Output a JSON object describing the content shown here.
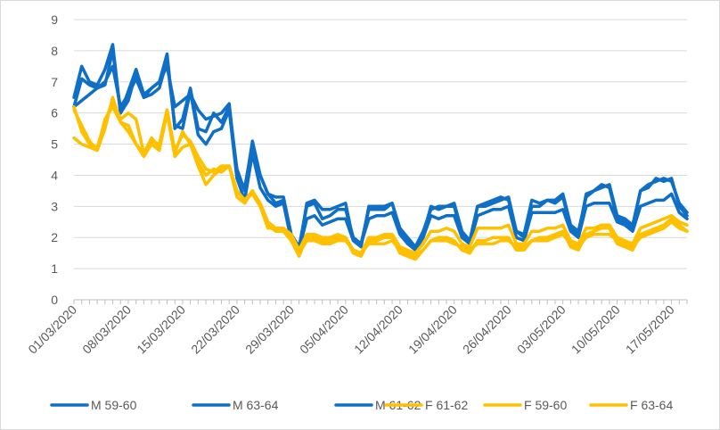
{
  "chart_data": {
    "type": "line",
    "title": "",
    "xlabel": "",
    "ylabel": "",
    "ylim": [
      0,
      9
    ],
    "yticks": [
      "0",
      "1",
      "2",
      "3",
      "4",
      "5",
      "6",
      "7",
      "8",
      "9"
    ],
    "grid": "horizontal",
    "legend_position": "bottom",
    "x_tick_labels": [
      "01/03/2020",
      "08/03/2020",
      "15/03/2020",
      "22/03/2020",
      "29/03/2020",
      "05/04/2020",
      "12/04/2020",
      "19/04/2020",
      "26/04/2020",
      "03/05/2020",
      "10/05/2020",
      "17/05/2020"
    ],
    "x_start": "2020-03-01",
    "series": [
      {
        "name": "M 59-60",
        "color": "#0f6fc6",
        "values": [
          6.5,
          7.5,
          7.0,
          6.9,
          7.4,
          8.2,
          6.0,
          6.7,
          7.4,
          6.6,
          6.8,
          7.0,
          7.9,
          5.5,
          5.8,
          6.8,
          5.5,
          5.4,
          6.0,
          5.7,
          6.2,
          4.2,
          3.5,
          5.1,
          4.0,
          3.4,
          3.3,
          3.3,
          2.1,
          1.7,
          3.0,
          3.1,
          2.6,
          2.7,
          2.9,
          2.9,
          2.0,
          1.8,
          2.9,
          2.9,
          2.9,
          3.1,
          2.2,
          1.9,
          1.7,
          2.1,
          3.0,
          2.9,
          3.0,
          3.0,
          2.1,
          1.9,
          3.0,
          3.0,
          3.1,
          3.2,
          3.3,
          2.2,
          2.1,
          3.2,
          3.1,
          3.2,
          3.2,
          3.4,
          2.4,
          2.2,
          3.3,
          3.5,
          3.6,
          3.7,
          2.7,
          2.6,
          2.4,
          3.5,
          3.6,
          3.9,
          3.8,
          3.9,
          3.0,
          2.7
        ]
      },
      {
        "name": "M 63-64",
        "color": "#0f6fc6",
        "values": [
          6.2,
          6.4,
          6.6,
          6.8,
          7.0,
          7.5,
          6.2,
          6.6,
          7.1,
          6.5,
          6.8,
          7.0,
          7.5,
          6.2,
          6.4,
          6.6,
          6.1,
          5.8,
          5.9,
          6.0,
          6.3,
          4.0,
          3.6,
          5.0,
          4.0,
          3.4,
          3.1,
          3.2,
          2.1,
          1.6,
          3.1,
          3.2,
          2.9,
          2.9,
          3.0,
          3.1,
          1.9,
          1.7,
          3.0,
          3.0,
          3.0,
          3.1,
          2.3,
          2.0,
          1.7,
          2.2,
          2.9,
          3.0,
          3.0,
          3.1,
          2.2,
          1.9,
          3.0,
          3.1,
          3.2,
          3.3,
          3.2,
          2.2,
          2.0,
          3.0,
          3.0,
          3.2,
          3.1,
          3.3,
          2.3,
          2.1,
          3.4,
          3.5,
          3.7,
          3.6,
          2.6,
          2.5,
          2.3,
          3.5,
          3.7,
          3.8,
          3.9,
          3.8,
          3.1,
          2.8
        ]
      },
      {
        "name": "M 61-62",
        "color": "#0f6fc6",
        "values": [
          6.2,
          7.1,
          6.9,
          6.8,
          6.9,
          8.0,
          6.0,
          6.4,
          7.3,
          6.5,
          6.6,
          6.8,
          7.7,
          5.6,
          5.5,
          6.7,
          5.3,
          5.0,
          5.4,
          5.5,
          6.1,
          3.9,
          3.2,
          4.7,
          3.6,
          3.2,
          3.0,
          3.1,
          1.9,
          1.6,
          2.6,
          2.7,
          2.4,
          2.5,
          2.6,
          2.6,
          1.9,
          1.8,
          2.6,
          2.7,
          2.7,
          2.8,
          2.1,
          1.8,
          1.6,
          2.0,
          2.7,
          2.6,
          2.7,
          2.7,
          2.0,
          1.8,
          2.7,
          2.8,
          2.9,
          2.9,
          3.0,
          2.0,
          1.9,
          2.8,
          2.8,
          2.8,
          2.8,
          2.9,
          2.2,
          2.0,
          3.0,
          3.1,
          3.1,
          3.1,
          2.5,
          2.4,
          2.2,
          3.0,
          3.1,
          3.2,
          3.2,
          3.4,
          2.8,
          2.6
        ]
      },
      {
        "name": "F 61-62",
        "color": "#ffc000",
        "values": [
          5.2,
          5.0,
          4.9,
          4.8,
          5.5,
          6.5,
          5.7,
          5.6,
          5.0,
          4.6,
          5.0,
          4.8,
          6.0,
          4.6,
          4.9,
          5.0,
          4.4,
          4.0,
          4.2,
          4.1,
          4.3,
          3.3,
          3.1,
          3.5,
          3.0,
          2.4,
          2.2,
          2.2,
          2.0,
          1.5,
          1.9,
          1.9,
          1.8,
          1.8,
          1.9,
          1.9,
          1.6,
          1.5,
          1.8,
          1.8,
          1.8,
          1.9,
          1.6,
          1.5,
          1.4,
          1.6,
          1.9,
          1.9,
          1.9,
          1.8,
          1.7,
          1.6,
          1.8,
          1.8,
          1.8,
          1.9,
          1.9,
          1.7,
          1.7,
          1.9,
          1.9,
          1.9,
          2.0,
          2.1,
          1.8,
          1.7,
          2.0,
          2.1,
          2.1,
          2.1,
          1.9,
          1.8,
          1.7,
          2.0,
          2.1,
          2.2,
          2.3,
          2.5,
          2.3,
          2.2
        ]
      },
      {
        "name": "F 59-60",
        "color": "#ffc000",
        "values": [
          6.2,
          5.4,
          5.0,
          4.9,
          5.7,
          6.4,
          5.8,
          6.0,
          5.8,
          4.7,
          5.1,
          5.0,
          6.1,
          4.7,
          5.4,
          5.0,
          4.3,
          3.7,
          4.0,
          4.2,
          4.3,
          3.5,
          3.2,
          3.4,
          3.0,
          2.3,
          2.3,
          2.2,
          1.9,
          1.4,
          2.0,
          2.0,
          1.9,
          1.9,
          2.0,
          2.0,
          1.5,
          1.4,
          1.9,
          1.9,
          2.0,
          2.0,
          1.5,
          1.4,
          1.3,
          1.6,
          1.9,
          2.0,
          2.0,
          1.9,
          1.6,
          1.5,
          1.9,
          1.9,
          2.0,
          2.0,
          2.0,
          1.6,
          1.6,
          1.9,
          2.0,
          2.0,
          2.1,
          2.2,
          1.7,
          1.6,
          2.1,
          2.2,
          2.3,
          2.3,
          1.8,
          1.7,
          1.6,
          2.1,
          2.2,
          2.3,
          2.4,
          2.6,
          2.4,
          2.2
        ]
      },
      {
        "name": "F 63-64",
        "color": "#ffc000",
        "values": [
          6.1,
          5.6,
          5.1,
          4.8,
          5.8,
          6.2,
          5.7,
          5.4,
          5.0,
          4.7,
          5.2,
          4.9,
          6.1,
          4.8,
          5.3,
          5.1,
          4.6,
          4.2,
          4.1,
          4.3,
          4.3,
          3.5,
          3.2,
          3.5,
          3.1,
          2.5,
          2.3,
          2.3,
          2.1,
          1.6,
          2.1,
          2.1,
          2.0,
          2.0,
          2.1,
          2.0,
          1.6,
          1.5,
          2.0,
          2.0,
          2.1,
          2.1,
          1.7,
          1.6,
          1.5,
          1.8,
          2.2,
          2.2,
          2.3,
          2.2,
          1.8,
          1.7,
          2.3,
          2.3,
          2.3,
          2.3,
          2.4,
          1.8,
          1.8,
          2.2,
          2.2,
          2.3,
          2.3,
          2.4,
          1.9,
          1.8,
          2.3,
          2.3,
          2.4,
          2.4,
          2.0,
          1.9,
          1.8,
          2.3,
          2.4,
          2.5,
          2.6,
          2.7,
          2.5,
          2.4
        ]
      }
    ]
  }
}
